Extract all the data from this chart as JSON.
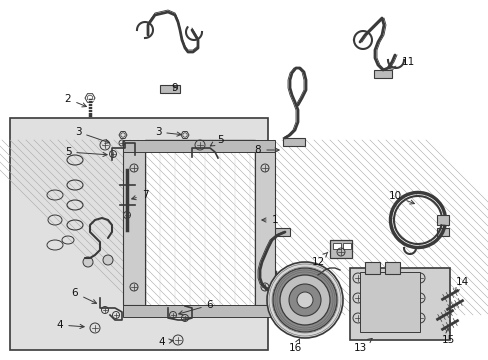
{
  "bg": "#ffffff",
  "box_fill": "#e8e8e8",
  "gray": "#3a3a3a",
  "lgray": "#888888",
  "mgray": "#bbbbbb",
  "fig_w": 4.89,
  "fig_h": 3.6,
  "dpi": 100
}
